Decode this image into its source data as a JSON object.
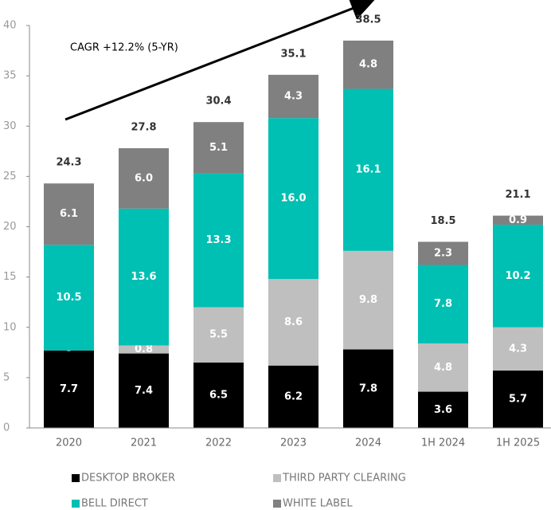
{
  "chart_data": {
    "type": "stacked_bar",
    "annotation": "CAGR +12.2% (5-YR)",
    "categories": [
      "2020",
      "2021",
      "2022",
      "2023",
      "2024",
      "1H 2024",
      "1H 2025"
    ],
    "series": [
      {
        "name": "DESKTOP BROKER",
        "color": "#000000",
        "values": [
          7.7,
          7.4,
          6.5,
          6.2,
          7.8,
          3.6,
          5.7
        ]
      },
      {
        "name": "THIRD PARTY CLEARING",
        "color": "#bfbfbf",
        "values": [
          0,
          0.8,
          5.5,
          8.6,
          9.8,
          4.8,
          4.3
        ],
        "value_labels": [
          "-",
          "0.8",
          "5.5",
          "8.6",
          "9.8",
          "4.8",
          "4.3"
        ]
      },
      {
        "name": "BELL DIRECT",
        "color": "#00bfb3",
        "values": [
          10.5,
          13.6,
          13.3,
          16.0,
          16.1,
          7.8,
          10.2
        ],
        "value_labels": [
          "10.5",
          "13.6",
          "13.3",
          "16.0",
          "16.1",
          "7.8",
          "10.2"
        ]
      },
      {
        "name": "WHITE LABEL",
        "color": "#808080",
        "values": [
          6.1,
          6.0,
          5.1,
          4.3,
          4.8,
          2.3,
          0.9
        ],
        "value_labels": [
          "6.1",
          "6.0",
          "5.1",
          "4.3",
          "4.8",
          "2.3",
          "0.9"
        ]
      }
    ],
    "totals": [
      24.3,
      27.8,
      30.4,
      35.1,
      38.5,
      18.5,
      21.1
    ],
    "ylim": [
      0,
      40
    ],
    "yticks": [
      0,
      5,
      10,
      15,
      20,
      25,
      30,
      35,
      40
    ]
  }
}
